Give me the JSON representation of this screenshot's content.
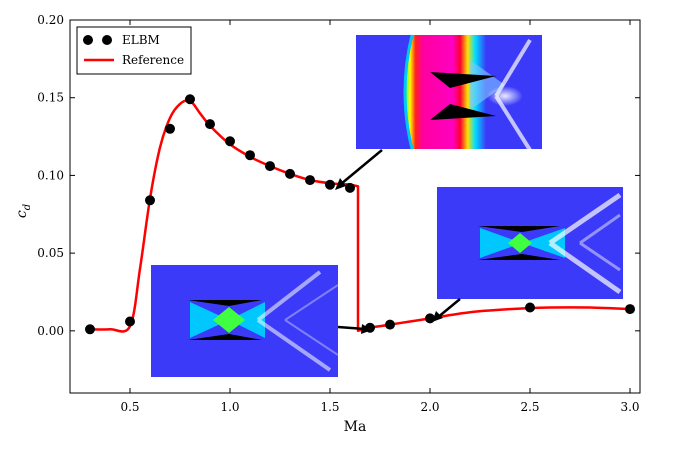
{
  "chart_data": {
    "type": "scatter",
    "xlabel": "Ma",
    "ylabel": "c",
    "ylabel_sub": "d",
    "xlim": [
      0.2,
      3.05
    ],
    "ylim": [
      -0.04,
      0.2
    ],
    "xticks": [
      0.5,
      1.0,
      1.5,
      2.0,
      2.5,
      3.0
    ],
    "xtick_labels": [
      "0.5",
      "1.0",
      "1.5",
      "2.0",
      "2.5",
      "3.0"
    ],
    "yticks": [
      0.0,
      0.05,
      0.1,
      0.15,
      0.2
    ],
    "ytick_labels": [
      "0.00",
      "0.05",
      "0.10",
      "0.15",
      "0.20"
    ],
    "legend_position": "top-left",
    "series": [
      {
        "name": "ELBM",
        "kind": "markers",
        "color": "#000000",
        "x": [
          0.3,
          0.5,
          0.6,
          0.7,
          0.8,
          0.9,
          1.0,
          1.1,
          1.2,
          1.3,
          1.4,
          1.5,
          1.6,
          1.7,
          1.8,
          2.0,
          2.5,
          3.0
        ],
        "y": [
          0.001,
          0.006,
          0.084,
          0.13,
          0.149,
          0.133,
          0.122,
          0.113,
          0.106,
          0.101,
          0.097,
          0.094,
          0.092,
          0.002,
          0.004,
          0.008,
          0.015,
          0.014
        ]
      },
      {
        "name": "Reference",
        "kind": "line",
        "color": "#ff0000",
        "x": [
          0.3,
          0.4,
          0.5,
          0.55,
          0.6,
          0.65,
          0.7,
          0.75,
          0.8,
          0.85,
          0.9,
          1.0,
          1.1,
          1.2,
          1.3,
          1.4,
          1.5,
          1.6,
          1.64,
          1.64,
          1.7,
          1.8,
          1.9,
          2.0,
          2.2,
          2.4,
          2.6,
          2.8,
          3.0
        ],
        "y": [
          0.001,
          0.001,
          0.003,
          0.04,
          0.085,
          0.118,
          0.137,
          0.146,
          0.148,
          0.14,
          0.132,
          0.12,
          0.112,
          0.106,
          0.101,
          0.097,
          0.095,
          0.094,
          0.093,
          0.0,
          0.002,
          0.004,
          0.006,
          0.008,
          0.012,
          0.014,
          0.015,
          0.015,
          0.014
        ]
      }
    ],
    "insets": [
      {
        "name": "inset-high-mach",
        "palette": "rainbow",
        "arrow_to": [
          1.55,
          0.093
        ]
      },
      {
        "name": "inset-post-jump",
        "palette": "blue-cyan",
        "arrow_to": [
          2.0,
          0.008
        ]
      },
      {
        "name": "inset-low-mach",
        "palette": "blue-cyan-green",
        "arrow_to": [
          1.7,
          0.002
        ]
      }
    ]
  }
}
